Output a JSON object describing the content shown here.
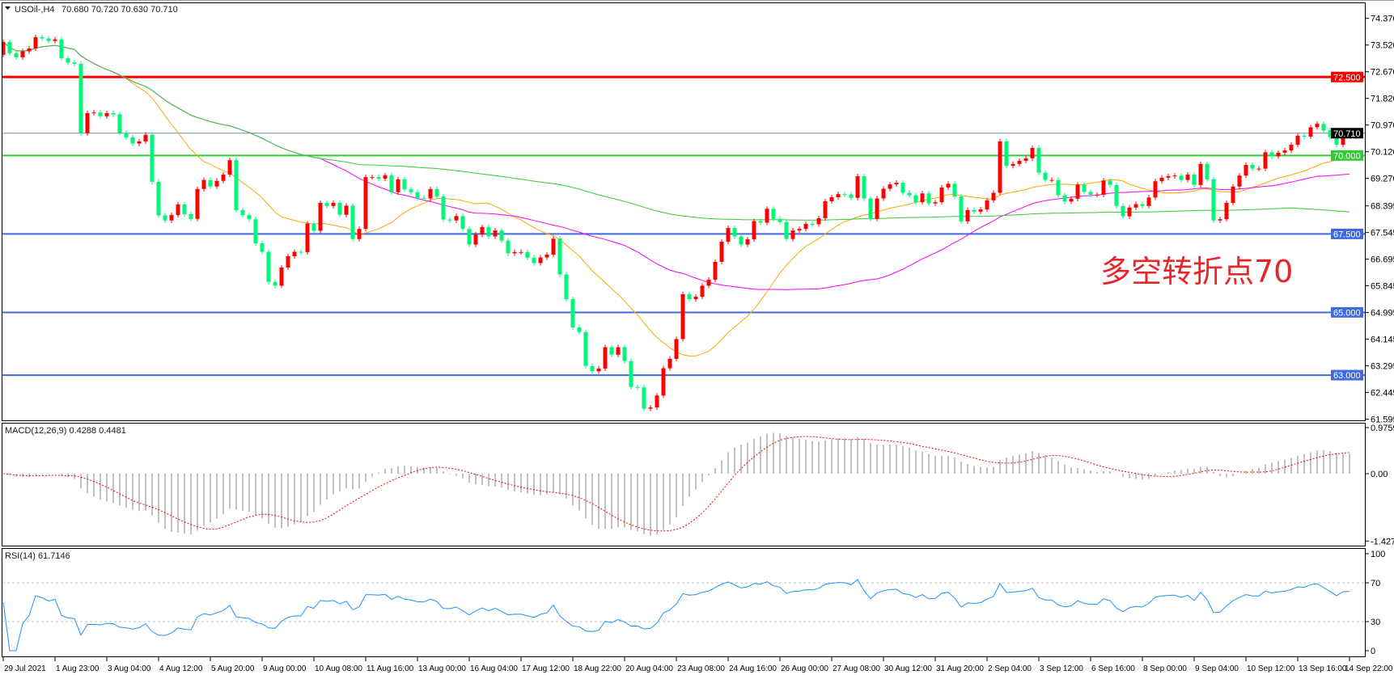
{
  "header": {
    "symbol": "USOil-,H4",
    "ohlc": "70.680 70.720 70.630 70.710"
  },
  "chart_data": {
    "type": "candlestick",
    "timeframe": "H4",
    "first_open": 73.21,
    "close": [
      73.62,
      73.26,
      73.13,
      73.32,
      73.41,
      73.77,
      73.73,
      73.65,
      73.7,
      73.1,
      72.96,
      72.92,
      70.71,
      71.35,
      71.37,
      71.25,
      71.35,
      71.31,
      70.72,
      70.58,
      70.38,
      70.45,
      70.66,
      69.16,
      68.09,
      67.93,
      68.1,
      68.44,
      68.13,
      67.98,
      68.93,
      69.22,
      69.01,
      69.19,
      69.39,
      69.85,
      68.26,
      68.1,
      67.97,
      67.2,
      66.93,
      65.97,
      65.85,
      66.43,
      66.79,
      66.93,
      66.92,
      67.83,
      67.6,
      68.49,
      68.39,
      68.49,
      68.11,
      68.4,
      67.34,
      67.66,
      69.31,
      69.31,
      69.26,
      69.37,
      68.83,
      69.24,
      68.92,
      68.83,
      68.65,
      68.63,
      68.93,
      68.69,
      67.96,
      67.93,
      68.07,
      67.66,
      67.16,
      67.48,
      67.72,
      67.42,
      67.61,
      67.29,
      66.88,
      66.92,
      66.92,
      66.74,
      66.57,
      66.75,
      66.84,
      67.35,
      66.21,
      65.42,
      64.52,
      64.37,
      63.29,
      63.12,
      63.21,
      63.89,
      63.65,
      63.89,
      63.45,
      62.62,
      62.61,
      61.93,
      61.97,
      62.35,
      63.22,
      63.52,
      64.15,
      65.58,
      65.42,
      65.5,
      65.85,
      66.04,
      66.61,
      67.25,
      67.69,
      67.42,
      67.16,
      67.33,
      67.91,
      67.86,
      68.3,
      67.98,
      67.88,
      67.34,
      67.61,
      67.66,
      67.82,
      67.81,
      68.0,
      68.54,
      68.67,
      68.77,
      68.76,
      68.65,
      69.34,
      68.63,
      67.98,
      68.63,
      68.94,
      69.08,
      69.13,
      68.81,
      68.73,
      68.51,
      68.79,
      68.47,
      68.51,
      68.98,
      69.1,
      68.69,
      67.9,
      68.26,
      68.21,
      68.28,
      68.57,
      68.81,
      70.45,
      69.67,
      69.73,
      69.83,
      69.91,
      70.24,
      69.45,
      69.22,
      69.22,
      68.73,
      68.53,
      68.62,
      69.07,
      68.84,
      68.75,
      68.75,
      69.2,
      69.06,
      68.39,
      68.06,
      68.34,
      68.45,
      68.39,
      68.66,
      69.18,
      69.29,
      69.34,
      69.36,
      69.22,
      69.39,
      69.06,
      69.73,
      69.24,
      67.93,
      67.97,
      68.49,
      69.01,
      69.36,
      69.7,
      69.58,
      69.58,
      70.1,
      69.97,
      70.09,
      70.16,
      70.34,
      70.63,
      70.6,
      70.9,
      71.01,
      70.8,
      70.59,
      70.34,
      70.68,
      70.71
    ],
    "up_color": "#ff0000",
    "down_color": "#00f57a",
    "price_range": [
      61.595,
      74.37
    ],
    "price_axis_labels": [
      "74.370",
      "73.520",
      "72.670",
      "71.820",
      "70.970",
      "70.120",
      "69.270",
      "68.395",
      "67.545",
      "66.695",
      "65.845",
      "64.995",
      "64.145",
      "63.295",
      "62.445",
      "61.595"
    ],
    "time_labels": [
      "29 Jul 2021",
      "1 Aug 23:00",
      "3 Aug 04:00",
      "4 Aug 12:00",
      "5 Aug 20:00",
      "9 Aug 00:00",
      "10 Aug 08:00",
      "11 Aug 16:00",
      "13 Aug 00:00",
      "16 Aug 04:00",
      "17 Aug 12:00",
      "18 Aug 22:00",
      "20 Aug 04:00",
      "23 Aug 08:00",
      "24 Aug 16:00",
      "26 Aug 00:00",
      "27 Aug 08:00",
      "30 Aug 12:00",
      "31 Aug 20:00",
      "2 Sep 04:00",
      "3 Sep 12:00",
      "6 Sep 16:00",
      "8 Sep 00:00",
      "9 Sep 04:00",
      "10 Sep 12:00",
      "13 Sep 16:00",
      "14 Sep 22:00"
    ],
    "moving_average_colors": [
      "#ffa500",
      "#ff00ff",
      "#32cd32"
    ],
    "levels": [
      {
        "value": "72.500",
        "color": "#ff0000"
      },
      {
        "value": "70.000",
        "color": "#32cd32"
      },
      {
        "value": "67.500",
        "color": "#4169e1"
      },
      {
        "value": "65.000",
        "color": "#4169e1"
      },
      {
        "value": "63.000",
        "color": "#4169e1"
      }
    ],
    "current_price": {
      "value": "70.710",
      "color": "#778899"
    },
    "annotation": "多空转折点70",
    "macd": {
      "label": "MACD(12,26,9) 0.4288 0.4481",
      "axis_labels": [
        "0.9759",
        "0.00",
        "-1.427"
      ],
      "histogram_color": "#c0c0c0",
      "signal_color": "#ff0000"
    },
    "rsi": {
      "label": "RSI(14) 61.7146",
      "axis_labels": [
        "100",
        "70",
        "30",
        "0"
      ],
      "levels": [
        70,
        30
      ],
      "color": "#1e90ff"
    }
  }
}
